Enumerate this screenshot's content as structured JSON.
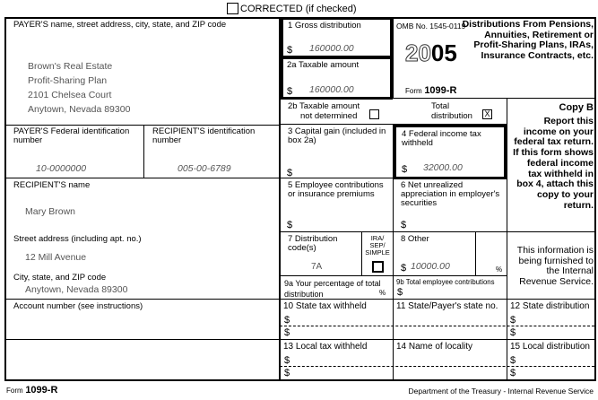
{
  "header": {
    "corrected_checked": false,
    "corrected_label": "CORRECTED (if checked)"
  },
  "payer": {
    "label": "PAYER'S name, street address, city, state, and ZIP code",
    "lines": [
      "Brown's Real Estate",
      "Profit-Sharing Plan",
      "2101 Chelsea Court",
      "Anytown, Nevada 89300"
    ],
    "fed_id_label": "PAYER'S Federal identification number",
    "fed_id": "10-0000000"
  },
  "recipient": {
    "id_label": "RECIPIENT'S identification number",
    "id": "005-00-6789",
    "name_label": "RECIPIENT'S name",
    "name": "Mary Brown",
    "street_label": "Street address (including apt. no.)",
    "street": "12 Mill Avenue",
    "city_label": "City, state, and ZIP code",
    "city": "Anytown, Nevada 89300",
    "account_label": "Account number (see instructions)"
  },
  "boxes": {
    "b1": {
      "label": "1  Gross distribution",
      "value": "160000.00"
    },
    "b2a": {
      "label": "2a Taxable amount",
      "value": "160000.00"
    },
    "b2b": {
      "label1": "2b Taxable amount",
      "label2": "not determined",
      "checked": false,
      "total_label1": "Total",
      "total_label2": "distribution",
      "total_mark": "X"
    },
    "b3": {
      "label": "3  Capital gain (included in box 2a)"
    },
    "b4": {
      "label": "4  Federal income tax withheld",
      "value": "32000.00"
    },
    "b5": {
      "label": "5  Employee contributions or insurance premiums"
    },
    "b6": {
      "label": "6  Net unrealized appreciation in employer's securities"
    },
    "b7": {
      "label": "7  Distribution code(s)",
      "value": "7A",
      "ira_label": "IRA/ SEP/ SIMPLE"
    },
    "b8": {
      "label": "8  Other",
      "value": "10000.00",
      "pct": "%"
    },
    "b9a": {
      "label": "9a  Your percentage of total distribution",
      "pct": "%"
    },
    "b9b": {
      "label": "9b  Total employee contributions"
    },
    "b10": {
      "label": "10  State tax withheld"
    },
    "b11": {
      "label": "11  State/Payer's state no."
    },
    "b12": {
      "label": "12  State distribution"
    },
    "b13": {
      "label": "13  Local tax withheld"
    },
    "b14": {
      "label": "14  Name of locality"
    },
    "b15": {
      "label": "15  Local distribution"
    },
    "dollar": "$"
  },
  "omb": {
    "number": "OMB No. 1545-0119",
    "year_light": "20",
    "year_bold": "05",
    "form_prefix": "Form",
    "form_name": "1099-R"
  },
  "title": "Distributions From Pensions, Annuities, Retirement or Profit-Sharing Plans, IRAs, Insurance Contracts, etc.",
  "copy": {
    "title": "Copy B",
    "text": "Report this income on your federal tax return. If this form shows federal income tax withheld in box 4, attach this copy to your return.",
    "irs_note": "This information is being furnished to the Internal Revenue Service."
  },
  "footer": {
    "form_prefix": "Form",
    "form_name": "1099-R",
    "dept": "Department of the Treasury - Internal Revenue Service"
  }
}
